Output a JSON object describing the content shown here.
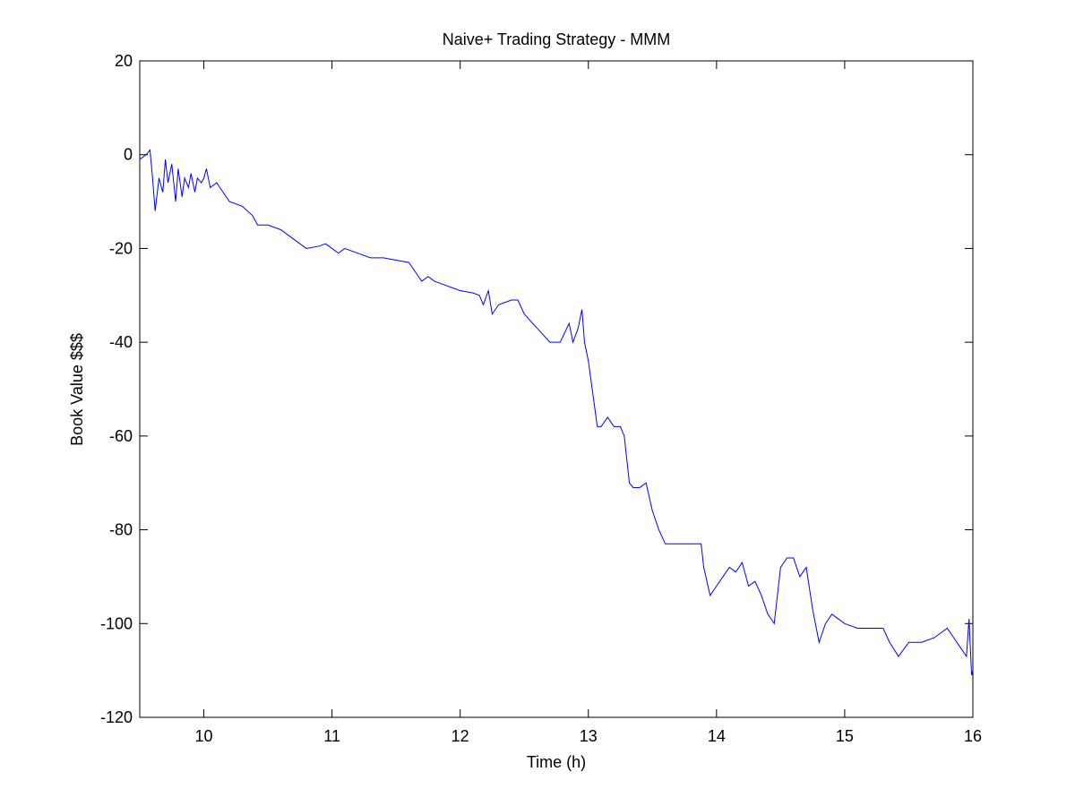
{
  "chart_data": {
    "type": "line",
    "title": "Naive+ Trading Strategy - MMM",
    "xlabel": "Time (h)",
    "ylabel": "Book Value $$$",
    "xlim": [
      9.5,
      16
    ],
    "ylim": [
      -120,
      20
    ],
    "xticks": [
      10,
      11,
      12,
      13,
      14,
      15,
      16
    ],
    "yticks": [
      -120,
      -100,
      -80,
      -60,
      -40,
      -20,
      0,
      20
    ],
    "grid": false,
    "series": [
      {
        "color": "#0000ff",
        "x": [
          9.5,
          9.55,
          9.58,
          9.6,
          9.62,
          9.65,
          9.68,
          9.7,
          9.72,
          9.75,
          9.78,
          9.8,
          9.83,
          9.85,
          9.88,
          9.9,
          9.93,
          9.95,
          9.98,
          10.0,
          10.02,
          10.05,
          10.1,
          10.15,
          10.2,
          10.3,
          10.38,
          10.42,
          10.5,
          10.6,
          10.7,
          10.8,
          10.9,
          10.95,
          11.0,
          11.05,
          11.1,
          11.2,
          11.3,
          11.4,
          11.5,
          11.6,
          11.65,
          11.7,
          11.75,
          11.8,
          11.9,
          12.0,
          12.1,
          12.15,
          12.18,
          12.22,
          12.25,
          12.3,
          12.4,
          12.45,
          12.5,
          12.6,
          12.7,
          12.78,
          12.85,
          12.88,
          12.92,
          12.95,
          12.97,
          13.0,
          13.03,
          13.07,
          13.1,
          13.15,
          13.2,
          13.25,
          13.28,
          13.32,
          13.35,
          13.4,
          13.45,
          13.5,
          13.55,
          13.6,
          13.7,
          13.8,
          13.88,
          13.9,
          13.95,
          14.0,
          14.05,
          14.1,
          14.15,
          14.2,
          14.25,
          14.3,
          14.35,
          14.4,
          14.45,
          14.5,
          14.55,
          14.6,
          14.65,
          14.7,
          14.75,
          14.8,
          14.85,
          14.9,
          14.95,
          15.0,
          15.1,
          15.2,
          15.3,
          15.35,
          15.42,
          15.5,
          15.6,
          15.7,
          15.8,
          15.85,
          15.9,
          15.95,
          15.97,
          15.99,
          16.0
        ],
        "values": [
          -1,
          0,
          1,
          -5,
          -12,
          -5,
          -8,
          -1,
          -6,
          -2,
          -10,
          -3,
          -9,
          -5,
          -7,
          -4,
          -8,
          -5,
          -6,
          -5,
          -3,
          -7,
          -6,
          -8,
          -10,
          -11,
          -13,
          -15,
          -15,
          -16,
          -18,
          -20,
          -19.5,
          -19,
          -20,
          -21,
          -20,
          -21,
          -22,
          -22,
          -22.5,
          -23,
          -25,
          -27,
          -26,
          -27,
          -28,
          -29,
          -29.5,
          -30,
          -32,
          -29,
          -34,
          -32,
          -31,
          -31,
          -34,
          -37,
          -40,
          -40,
          -36,
          -40,
          -37,
          -33,
          -40,
          -44,
          -50,
          -58,
          -58,
          -56,
          -58,
          -58,
          -60,
          -70,
          -71,
          -71,
          -70,
          -76,
          -80,
          -83,
          -83,
          -83,
          -83,
          -88,
          -94,
          -92,
          -90,
          -88,
          -89,
          -87,
          -92,
          -91,
          -94,
          -98,
          -100,
          -88,
          -86,
          -86,
          -90,
          -88,
          -97,
          -104,
          -100,
          -98,
          -99,
          -100,
          -101,
          -101,
          -101,
          -104,
          -107,
          -104,
          -104,
          -103,
          -101,
          -103,
          -105,
          -107,
          -99,
          -111,
          -110
        ]
      }
    ]
  }
}
